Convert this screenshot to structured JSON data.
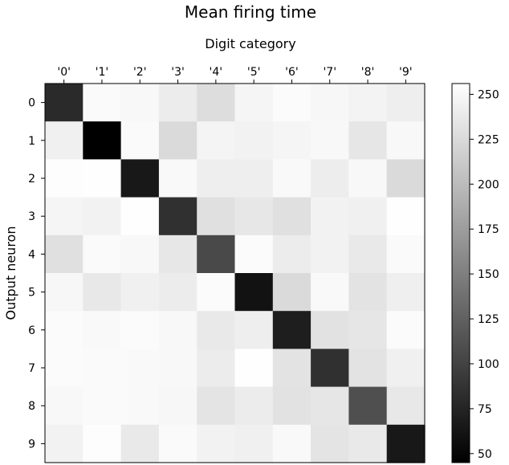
{
  "chart_data": {
    "type": "heatmap",
    "title": "Mean firing time",
    "xlabel": "Digit category",
    "ylabel": "Output neuron",
    "x_tick_labels": [
      "'0'",
      "'1'",
      "'2'",
      "'3'",
      "'4'",
      "'5'",
      "'6'",
      "'7'",
      "'8'",
      "'9'"
    ],
    "y_tick_labels": [
      "0",
      "1",
      "2",
      "3",
      "4",
      "5",
      "6",
      "7",
      "8",
      "9"
    ],
    "colormap": "gray",
    "colorbar": {
      "range": [
        45,
        256
      ],
      "ticks": [
        50,
        75,
        100,
        125,
        150,
        175,
        200,
        225,
        250
      ],
      "tick_labels": [
        "50",
        "75",
        "100",
        "125",
        "150",
        "175",
        "200",
        "225",
        "250"
      ]
    },
    "values": [
      [
        80,
        252,
        250,
        240,
        228,
        248,
        253,
        249,
        246,
        242
      ],
      [
        244,
        45,
        252,
        225,
        247,
        245,
        248,
        250,
        235,
        250
      ],
      [
        254,
        255,
        65,
        251,
        242,
        242,
        251,
        241,
        250,
        225
      ],
      [
        248,
        245,
        255,
        85,
        230,
        236,
        230,
        245,
        244,
        255
      ],
      [
        230,
        252,
        250,
        236,
        105,
        253,
        240,
        245,
        238,
        252
      ],
      [
        249,
        237,
        244,
        240,
        253,
        60,
        225,
        251,
        233,
        243
      ],
      [
        253,
        251,
        253,
        250,
        238,
        242,
        70,
        232,
        235,
        253
      ],
      [
        253,
        252,
        251,
        250,
        240,
        255,
        233,
        85,
        233,
        244
      ],
      [
        250,
        252,
        251,
        249,
        234,
        240,
        232,
        235,
        110,
        237
      ],
      [
        245,
        254,
        238,
        252,
        245,
        244,
        251,
        234,
        238,
        65
      ]
    ]
  }
}
